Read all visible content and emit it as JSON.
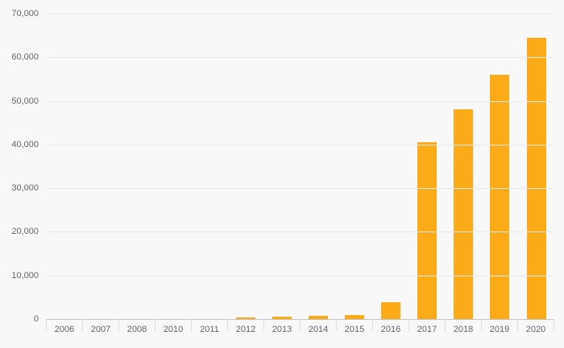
{
  "chart_data": {
    "type": "bar",
    "title": "",
    "xlabel": "",
    "ylabel": "",
    "categories": [
      "2006",
      "2007",
      "2008",
      "2010",
      "2011",
      "2012",
      "2013",
      "2014",
      "2015",
      "2016",
      "2017",
      "2018",
      "2019",
      "2020"
    ],
    "values": [
      0,
      0,
      0,
      0,
      0,
      300,
      500,
      700,
      900,
      3800,
      40500,
      48000,
      56000,
      64500
    ],
    "ylim": [
      0,
      70000
    ],
    "ytick_interval": 10000,
    "ytick_labels": [
      "70,000",
      "60,000",
      "50,000",
      "40,000",
      "30,000",
      "20,000",
      "10,000",
      "0"
    ],
    "grid": true,
    "legend": false,
    "bar_color": "#FBAB18"
  },
  "colors": {
    "background": "#f8f8f8",
    "gridline": "#e8e8e8",
    "baseline": "#c4c4c4",
    "axis_text": "#666666",
    "tick_separator": "#dedede",
    "bar": "#FBAB18"
  }
}
